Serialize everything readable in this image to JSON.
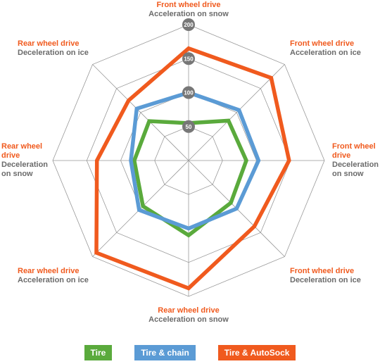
{
  "chart_data": {
    "type": "radar",
    "categories": [
      {
        "drive": "Front wheel drive",
        "test": "Acceleration on snow"
      },
      {
        "drive": "Front wheel drive",
        "test": "Acceleration on ice"
      },
      {
        "drive": "Front wheel drive",
        "test": "Deceleration on snow"
      },
      {
        "drive": "Front wheel drive",
        "test": "Deceleration on ice"
      },
      {
        "drive": "Rear wheel drive",
        "test": "Acceleration on snow"
      },
      {
        "drive": "Rear wheel drive",
        "test": "Acceleration on ice"
      },
      {
        "drive": "Rear wheel drive",
        "test": "Deceleration on snow"
      },
      {
        "drive": "Rear wheel drive",
        "test": "Deceleration on ice"
      }
    ],
    "rlim": [
      0,
      200
    ],
    "rticks": [
      50,
      100,
      150,
      200
    ],
    "series": [
      {
        "name": "Tire",
        "color": "#5aaa3c",
        "values": [
          55,
          83,
          85,
          88,
          110,
          95,
          80,
          82
        ]
      },
      {
        "name": "Tire & chain",
        "color": "#5b9bd5",
        "values": [
          100,
          105,
          103,
          100,
          100,
          103,
          85,
          108
        ]
      },
      {
        "name": "Tire & AutoSock",
        "color": "#f05a1e",
        "values": [
          165,
          172,
          148,
          137,
          188,
          192,
          135,
          125
        ]
      }
    ]
  }
}
